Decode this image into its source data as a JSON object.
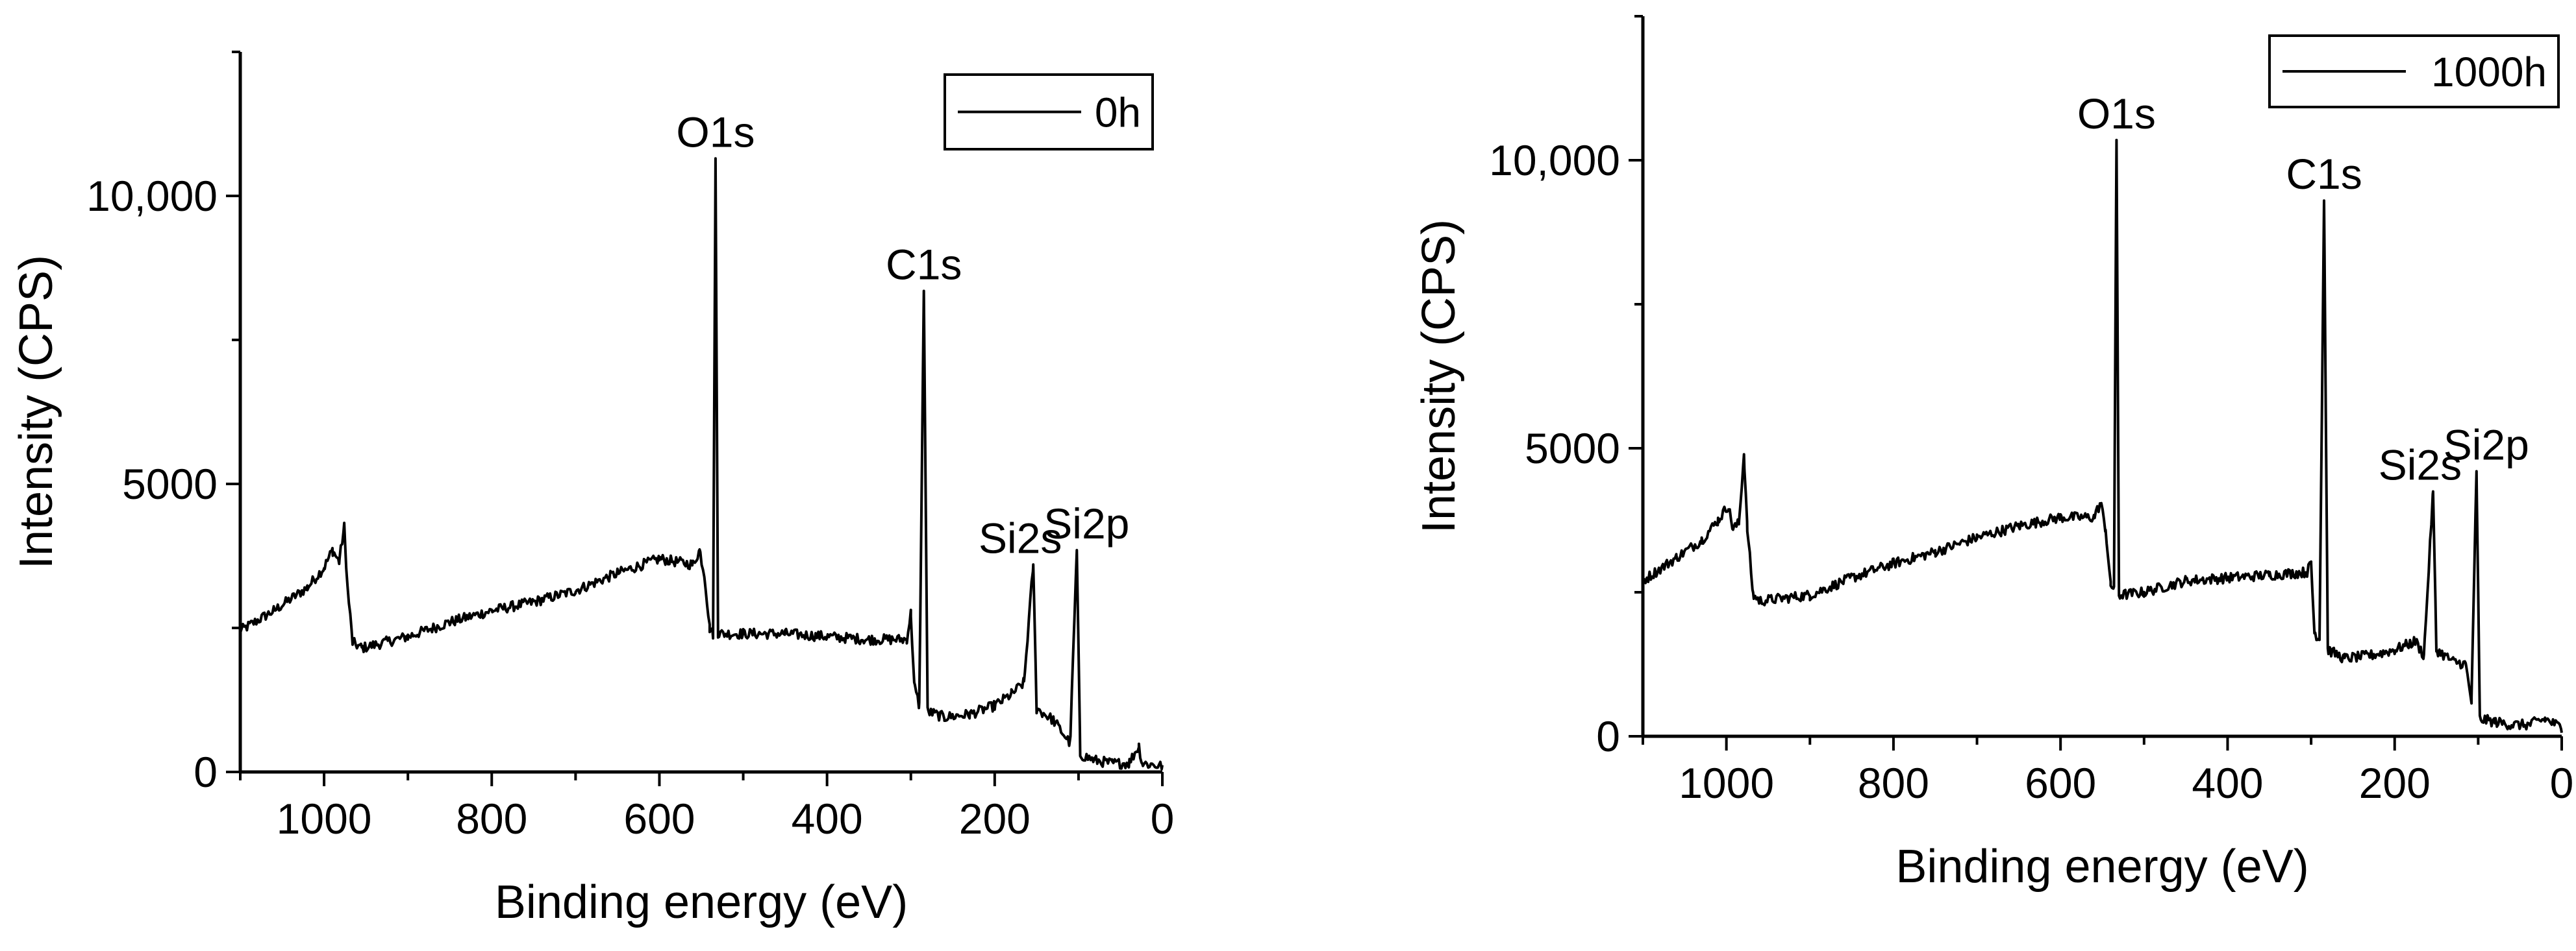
{
  "chart_data": [
    {
      "type": "line",
      "title": "",
      "xlabel": "Binding energy (eV)",
      "ylabel": "Intensity (CPS)",
      "xlim": [
        1100,
        0
      ],
      "ylim": [
        0,
        12500
      ],
      "x_ticks": [
        1000,
        800,
        600,
        400,
        200,
        0
      ],
      "x_tick_labels": [
        "1000",
        "800",
        "600",
        "400",
        "200",
        "0"
      ],
      "y_ticks": [
        0,
        5000,
        10000
      ],
      "y_tick_labels": [
        "0",
        "5000",
        "10,000"
      ],
      "legend": [
        {
          "label": "0h",
          "color": "#000000"
        }
      ],
      "legend_position": "top-right",
      "series": [
        {
          "name": "0h",
          "points": [
            [
              1100,
              2450
            ],
            [
              1060,
              2800
            ],
            [
              1020,
              3200
            ],
            [
              1000,
              3550
            ],
            [
              990,
              3850
            ],
            [
              982,
              3650
            ],
            [
              976,
              4250
            ],
            [
              972,
              3200
            ],
            [
              966,
              2250
            ],
            [
              955,
              2150
            ],
            [
              900,
              2350
            ],
            [
              850,
              2600
            ],
            [
              800,
              2800
            ],
            [
              750,
              2950
            ],
            [
              700,
              3150
            ],
            [
              650,
              3450
            ],
            [
              600,
              3700
            ],
            [
              560,
              3600
            ],
            [
              552,
              3850
            ],
            [
              546,
              3400
            ],
            [
              540,
              2500
            ],
            [
              536,
              2400
            ],
            [
              533,
              10650
            ],
            [
              530,
              2400
            ],
            [
              500,
              2400
            ],
            [
              450,
              2400
            ],
            [
              400,
              2350
            ],
            [
              350,
              2300
            ],
            [
              305,
              2300
            ],
            [
              300,
              2750
            ],
            [
              296,
              1500
            ],
            [
              290,
              1150
            ],
            [
              284.5,
              8350
            ],
            [
              280,
              1050
            ],
            [
              260,
              950
            ],
            [
              230,
              1000
            ],
            [
              200,
              1150
            ],
            [
              180,
              1350
            ],
            [
              165,
              1550
            ],
            [
              154,
              3600
            ],
            [
              150,
              1100
            ],
            [
              130,
              900
            ],
            [
              110,
              500
            ],
            [
              102,
              3850
            ],
            [
              98,
              300
            ],
            [
              80,
              200
            ],
            [
              60,
              150
            ],
            [
              40,
              150
            ],
            [
              28,
              450
            ],
            [
              24,
              150
            ],
            [
              0,
              100
            ]
          ],
          "noise_amplitude": 90
        }
      ],
      "annotations": [
        {
          "text": "O1s",
          "x": 533,
          "y": 10650
        },
        {
          "text": "C1s",
          "x": 284.5,
          "y": 8350
        },
        {
          "text": "Si2s",
          "x": 154,
          "y": 3600
        },
        {
          "text": "Si2p",
          "x": 102,
          "y": 3850
        }
      ]
    },
    {
      "type": "line",
      "title": "",
      "xlabel": "Binding energy (eV)",
      "ylabel": "Intensity (CPS)",
      "xlim": [
        1100,
        0
      ],
      "ylim": [
        0,
        12500
      ],
      "x_ticks": [
        1000,
        800,
        600,
        400,
        200,
        0
      ],
      "x_tick_labels": [
        "1000",
        "800",
        "600",
        "400",
        "200",
        "0"
      ],
      "y_ticks": [
        0,
        5000,
        10000
      ],
      "y_tick_labels": [
        "0",
        "5000",
        "10,000"
      ],
      "legend": [
        {
          "label": "1000h",
          "color": "#000000"
        }
      ],
      "legend_position": "top-right",
      "series": [
        {
          "name": "1000h",
          "points": [
            [
              1100,
              2700
            ],
            [
              1060,
              3100
            ],
            [
              1030,
              3400
            ],
            [
              1010,
              3750
            ],
            [
              998,
              4000
            ],
            [
              992,
              3600
            ],
            [
              985,
              3700
            ],
            [
              979,
              4900
            ],
            [
              975,
              3600
            ],
            [
              968,
              2450
            ],
            [
              960,
              2350
            ],
            [
              900,
              2450
            ],
            [
              850,
              2750
            ],
            [
              800,
              3000
            ],
            [
              750,
              3200
            ],
            [
              700,
              3450
            ],
            [
              650,
              3650
            ],
            [
              600,
              3800
            ],
            [
              560,
              3800
            ],
            [
              552,
              4050
            ],
            [
              546,
              3600
            ],
            [
              540,
              2600
            ],
            [
              536,
              2600
            ],
            [
              533,
              10350
            ],
            [
              530,
              2450
            ],
            [
              500,
              2500
            ],
            [
              450,
              2700
            ],
            [
              400,
              2750
            ],
            [
              350,
              2800
            ],
            [
              305,
              2850
            ],
            [
              300,
              3000
            ],
            [
              296,
              1800
            ],
            [
              290,
              1700
            ],
            [
              284.5,
              9300
            ],
            [
              280,
              1500
            ],
            [
              260,
              1350
            ],
            [
              230,
              1400
            ],
            [
              200,
              1500
            ],
            [
              175,
              1650
            ],
            [
              165,
              1400
            ],
            [
              154,
              4250
            ],
            [
              150,
              1500
            ],
            [
              130,
              1300
            ],
            [
              115,
              1250
            ],
            [
              108,
              600
            ],
            [
              102,
              4600
            ],
            [
              98,
              300
            ],
            [
              80,
              250
            ],
            [
              60,
              200
            ],
            [
              40,
              200
            ],
            [
              20,
              300
            ],
            [
              0,
              150
            ]
          ],
          "noise_amplitude": 90
        }
      ],
      "annotations": [
        {
          "text": "O1s",
          "x": 533,
          "y": 10350
        },
        {
          "text": "C1s",
          "x": 284.5,
          "y": 9300
        },
        {
          "text": "Si2s",
          "x": 154,
          "y": 4250
        },
        {
          "text": "Si2p",
          "x": 102,
          "y": 4600
        }
      ]
    }
  ]
}
